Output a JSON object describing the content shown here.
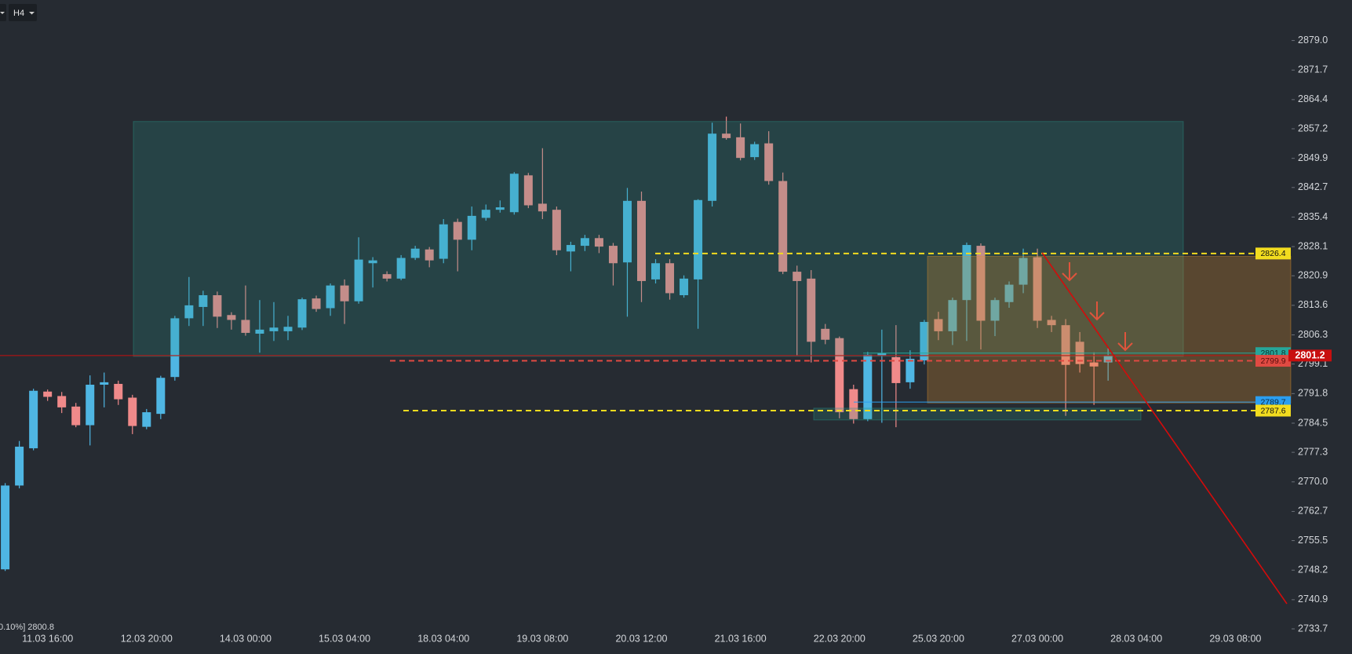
{
  "toolbar": {
    "timeframe": "H4"
  },
  "status_text": "0.10%] 2800.8",
  "chart_data": {
    "type": "candlestick",
    "categories": [
      null,
      null,
      null,
      "11.03 16:00",
      null,
      null,
      null,
      null,
      null,
      null,
      "12.03 20:00",
      null,
      null,
      null,
      null,
      null,
      null,
      "14.03 00:00",
      null,
      null,
      null,
      null,
      null,
      null,
      "15.03 04:00",
      null,
      null,
      null,
      null,
      null,
      null,
      "18.03 04:00",
      null,
      null,
      null,
      null,
      null,
      null,
      "19.03 08:00",
      null,
      null,
      null,
      null,
      null,
      null,
      "20.03 12:00",
      null,
      null,
      null,
      null,
      null,
      null,
      "21.03 16:00",
      null,
      null,
      null,
      null,
      null,
      null,
      "22.03 20:00",
      null,
      null,
      null,
      null,
      null,
      null,
      "25.03 20:00",
      null,
      null,
      null,
      null,
      null,
      null,
      "27.03 00:00",
      null,
      null,
      null,
      null,
      null,
      null,
      "28.03 04:00",
      null,
      null,
      null,
      null,
      null,
      null,
      "29.03 08:00"
    ],
    "open": [
      2748.4,
      2769.1,
      2778.3,
      2792.3,
      2791.2,
      2788.6,
      2784.0,
      2794.0,
      2794.2,
      2790.8,
      2783.6,
      2786.8,
      2795.9,
      2810.4,
      2813.2,
      2816.1,
      2811.2,
      2810.0,
      2806.6,
      2807.2,
      2807.2,
      2808.1,
      2815.3,
      2812.9,
      2818.5,
      2814.6,
      2824.0,
      2821.3,
      2820.2,
      2825.3,
      2827.4,
      2825.1,
      2834.2,
      2829.8,
      2835.2,
      2837.2,
      2836.6,
      2845.7,
      2838.7,
      2837.2,
      2826.9,
      2828.3,
      2830.2,
      2828.3,
      2824.2,
      2839.4,
      2820.0,
      2824.0,
      2816.1,
      2820.0,
      2839.4,
      2856.0,
      2855.1,
      2850.2,
      2853.6,
      2844.3,
      2821.9,
      2820.2,
      2807.8,
      2805.5,
      2792.9,
      2785.5,
      2801.2,
      2800.8,
      2794.6,
      2800.0,
      2810.2,
      2807.2,
      2814.9,
      2828.3,
      2809.8,
      2814.4,
      2818.7,
      2825.5,
      2810.0,
      2808.7,
      2804.6,
      2799.5,
      2799.5,
      null,
      null,
      null,
      null,
      null,
      null,
      null,
      null,
      null
    ],
    "high": [
      2769.7,
      2780.1,
      2793.0,
      2792.8,
      2792.2,
      2789.5,
      2796.3,
      2797.0,
      2795.0,
      2791.5,
      2788.0,
      2796.2,
      2811.0,
      2820.6,
      2817.2,
      2817.0,
      2811.9,
      2818.5,
      2814.9,
      2814.4,
      2811.0,
      2815.5,
      2816.0,
      2819.0,
      2820.0,
      2830.4,
      2825.5,
      2822.0,
      2826.0,
      2828.3,
      2828.0,
      2834.9,
      2835.0,
      2838.0,
      2838.5,
      2839.5,
      2846.5,
      2846.3,
      2852.4,
      2838.0,
      2829.3,
      2831.0,
      2831.0,
      2829.0,
      2842.6,
      2841.7,
      2825.0,
      2825.0,
      2821.0,
      2839.8,
      2858.7,
      2860.2,
      2858.5,
      2854.0,
      2856.6,
      2846.4,
      2823.4,
      2822.3,
      2809.0,
      2805.9,
      2794.0,
      2802.1,
      2807.6,
      2808.7,
      2802.5,
      2810.0,
      2812.0,
      2815.5,
      2829.1,
      2828.9,
      2815.5,
      2819.5,
      2827.6,
      2827.6,
      2811.0,
      2810.2,
      2807.0,
      2802.0,
      2803.0,
      null,
      null,
      null,
      null,
      null,
      null,
      null,
      null,
      null
    ],
    "low": [
      2748.0,
      2768.4,
      2777.8,
      2790.0,
      2787.0,
      2783.5,
      2779.0,
      2788.4,
      2789.0,
      2781.8,
      2783.0,
      2785.5,
      2795.0,
      2808.5,
      2808.5,
      2808.0,
      2807.6,
      2806.1,
      2801.9,
      2804.8,
      2805.0,
      2807.5,
      2812.0,
      2811.0,
      2809.0,
      2814.0,
      2818.0,
      2819.5,
      2819.8,
      2824.8,
      2823.0,
      2824.0,
      2822.0,
      2827.2,
      2834.5,
      2836.5,
      2836.0,
      2837.6,
      2834.9,
      2826.0,
      2822.0,
      2827.0,
      2826.5,
      2818.5,
      2810.8,
      2814.4,
      2819.0,
      2815.0,
      2815.5,
      2807.8,
      2838.0,
      2854.5,
      2849.4,
      2849.5,
      2843.4,
      2821.3,
      2801.2,
      2799.5,
      2804.0,
      2785.7,
      2784.4,
      2785.0,
      2784.6,
      2783.5,
      2793.0,
      2799.0,
      2805.0,
      2803.8,
      2804.8,
      2802.7,
      2806.0,
      2813.0,
      2816.6,
      2808.0,
      2807.0,
      2786.3,
      2797.0,
      2789.0,
      2795.0,
      null,
      null,
      null,
      null,
      null,
      null,
      null,
      null,
      null
    ],
    "close": [
      2769.1,
      2778.7,
      2792.5,
      2791.0,
      2788.4,
      2784.0,
      2794.0,
      2794.6,
      2790.4,
      2783.8,
      2787.2,
      2795.7,
      2810.4,
      2813.6,
      2816.1,
      2810.8,
      2810.0,
      2806.8,
      2807.6,
      2808.1,
      2808.3,
      2815.1,
      2812.7,
      2818.5,
      2814.6,
      2824.9,
      2824.7,
      2820.2,
      2825.3,
      2827.6,
      2824.7,
      2833.6,
      2829.8,
      2835.7,
      2837.2,
      2837.8,
      2846.1,
      2838.3,
      2836.8,
      2827.2,
      2828.5,
      2830.2,
      2828.1,
      2824.0,
      2839.4,
      2819.6,
      2824.0,
      2816.6,
      2820.2,
      2839.6,
      2856.0,
      2854.9,
      2850.0,
      2853.4,
      2844.3,
      2821.9,
      2819.6,
      2804.6,
      2805.1,
      2787.2,
      2785.5,
      2801.4,
      2801.8,
      2794.4,
      2800.4,
      2809.5,
      2807.2,
      2814.9,
      2828.5,
      2809.8,
      2814.9,
      2818.7,
      2825.3,
      2809.8,
      2808.7,
      2798.9,
      2799.1,
      2798.5,
      2801.2,
      null,
      null,
      null,
      null,
      null,
      null,
      null,
      null,
      null
    ],
    "up_color": "#4fb6e3",
    "down_color": "#f08a8a",
    "ylim": [
      2733.7,
      2889.0
    ],
    "yticks": [
      {
        "value": 2879,
        "label": "2879.0"
      },
      2871.7,
      2864.4,
      2857.2,
      2849.9,
      2842.7,
      2835.4,
      2828.1,
      2820.9,
      2813.6,
      2806.3,
      2799.1,
      2791.8,
      2784.5,
      2777.3,
      {
        "value": 2770,
        "label": "2770.0"
      },
      2762.7,
      2755.5,
      2748.2,
      2740.9,
      2733.7
    ],
    "zones": [
      {
        "top": 2859.0,
        "bottom": 2801.0,
        "color": "#2a9d8f"
      },
      {
        "top": 2825.7,
        "bottom": 2789.5,
        "color": "#e0902a"
      },
      {
        "top": 2788.2,
        "bottom": 2785.3,
        "color": "#2a9d8f"
      }
    ],
    "levels": [
      {
        "value": 2826.4,
        "color": "#f2dc1f",
        "text_color": "#111111",
        "style": "dashed"
      },
      {
        "value": 2801.8,
        "color": "#26a69a",
        "text_color": "#0d2f2c",
        "style": "solid"
      },
      {
        "value": 2799.9,
        "color": "#e04a42",
        "text_color": "#5a0c0c",
        "style": "dashed"
      },
      {
        "value": 2789.7,
        "color": "#2b9ef0",
        "text_color": "#0b2a40",
        "style": "solid"
      },
      {
        "value": 2787.6,
        "color": "#f2dc1f",
        "text_color": "#111111",
        "style": "dashed"
      },
      {
        "value": 2801.2,
        "color": "#c80f0f",
        "text_color": "#ffffff",
        "style": "solid"
      }
    ],
    "trendline": {
      "start": 2826.6,
      "end": 2739.9,
      "color": "#d40b0b"
    }
  }
}
